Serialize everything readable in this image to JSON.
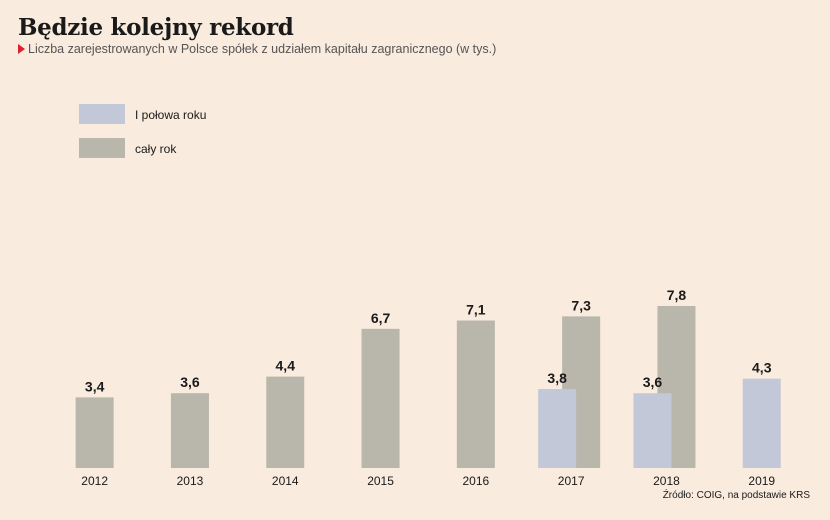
{
  "title": "Będzie kolejny rekord",
  "subtitle": "Liczba zarejestrowanych w Polsce spółek z udziałem kapitału zagranicznego (w tys.)",
  "source": "Źródło: COIG, na podstawie KRS",
  "colors": {
    "background": "#f9ebde",
    "full_year": "#b9b6ab",
    "half_year": "#c3c8d8",
    "marker": "#e0202a"
  },
  "chart_data": {
    "type": "bar",
    "categories": [
      "2012",
      "2013",
      "2014",
      "2015",
      "2016",
      "2017",
      "2018",
      "2019"
    ],
    "series": [
      {
        "name": "I połowa roku",
        "key": "half_year",
        "values": [
          null,
          null,
          null,
          null,
          null,
          3.8,
          3.6,
          4.3
        ],
        "labels": [
          "",
          "",
          "",
          "",
          "",
          "3,8",
          "3,6",
          "4,3"
        ]
      },
      {
        "name": "cały rok",
        "key": "full_year",
        "values": [
          3.4,
          3.6,
          4.4,
          6.7,
          7.1,
          7.3,
          7.8,
          null
        ],
        "labels": [
          "3,4",
          "3,6",
          "4,4",
          "6,7",
          "7,1",
          "7,3",
          "7,8",
          ""
        ]
      }
    ],
    "ylim": [
      0,
      8
    ],
    "grid": false,
    "legend": "top-left"
  }
}
